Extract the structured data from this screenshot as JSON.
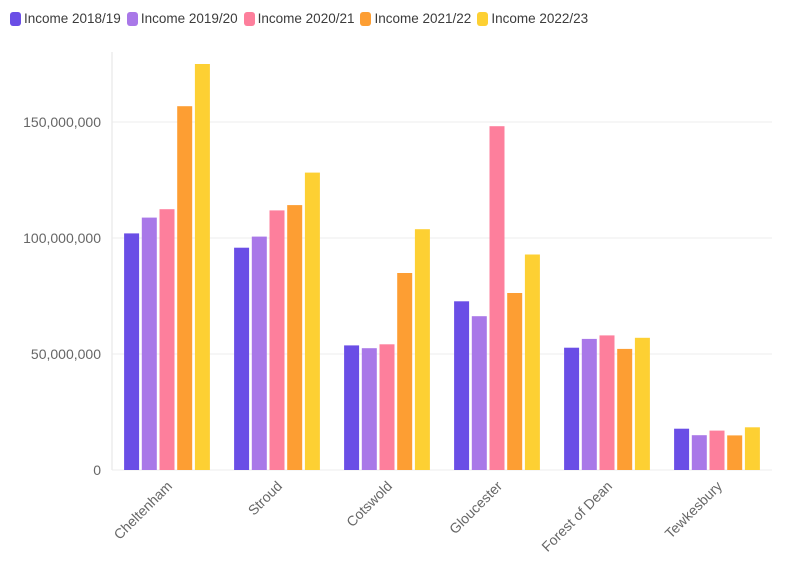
{
  "chart_data": {
    "type": "bar",
    "categories": [
      "Cheltenham",
      "Stroud",
      "Cotswold",
      "Gloucester",
      "Forest of Dean",
      "Tewkesbury"
    ],
    "series": [
      {
        "name": "Income 2018/19",
        "color": "#6a4ee6",
        "values": [
          102000000,
          95800000,
          53700000,
          72700000,
          52700000,
          17800000
        ]
      },
      {
        "name": "Income 2019/20",
        "color": "#a978e8",
        "values": [
          108800000,
          100600000,
          52500000,
          66300000,
          56500000,
          15000000
        ]
      },
      {
        "name": "Income 2020/21",
        "color": "#fd7f9c",
        "values": [
          112400000,
          111900000,
          54200000,
          148200000,
          58000000,
          17000000
        ]
      },
      {
        "name": "Income 2021/22",
        "color": "#fd9e33",
        "values": [
          156800000,
          114200000,
          84900000,
          76300000,
          52200000,
          14900000
        ]
      },
      {
        "name": "Income 2022/23",
        "color": "#fdd033",
        "values": [
          175000000,
          128200000,
          103800000,
          92900000,
          57000000,
          18400000
        ]
      }
    ],
    "y_ticks": [
      "0",
      "50,000,000",
      "100,000,000",
      "150,000,000"
    ],
    "y_tick_values": [
      0,
      50000000,
      100000000,
      150000000
    ],
    "ylim": [
      0,
      180000000
    ],
    "grid": true,
    "legend": "top-left"
  }
}
